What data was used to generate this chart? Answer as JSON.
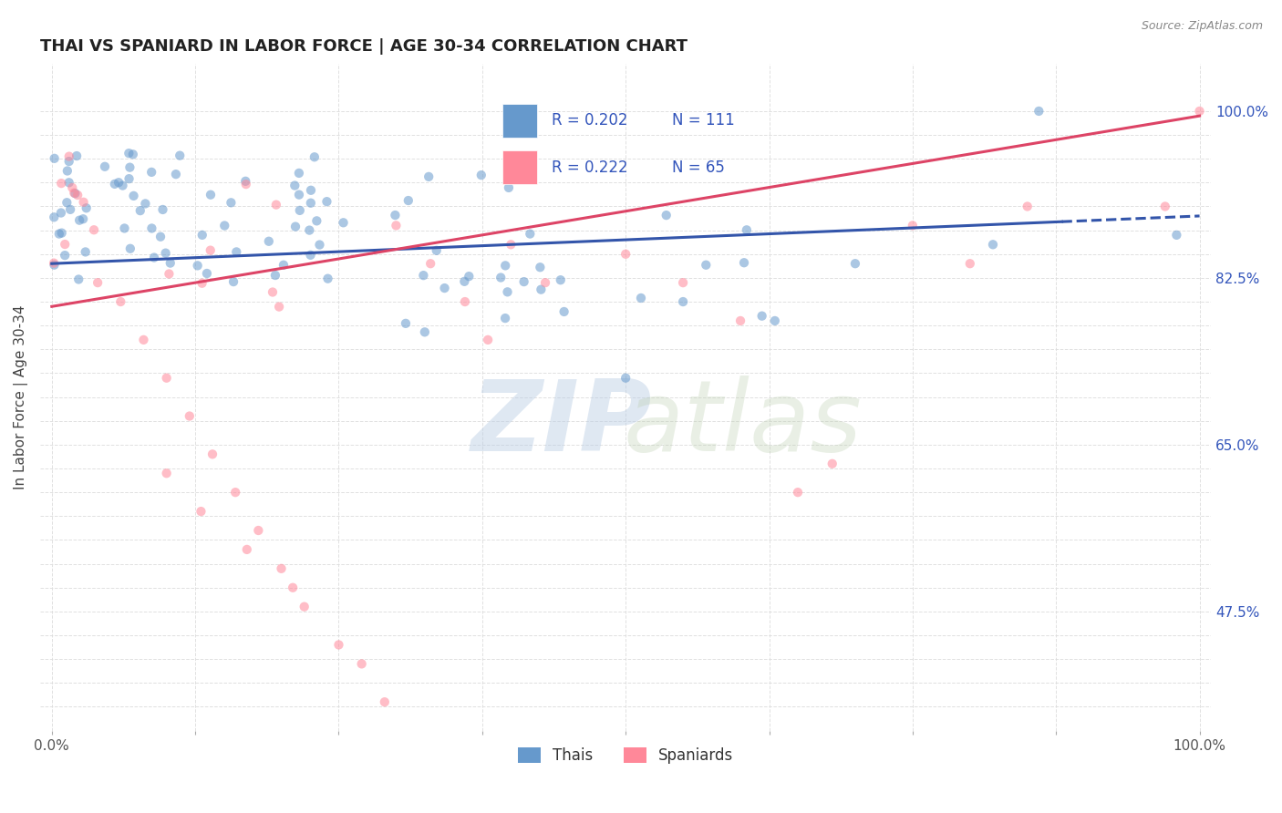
{
  "title": "THAI VS SPANIARD IN LABOR FORCE | AGE 30-34 CORRELATION CHART",
  "source": "Source: ZipAtlas.com",
  "ylabel": "In Labor Force | Age 30-34",
  "xlim": [
    0.0,
    1.0
  ],
  "ylim": [
    0.35,
    1.05
  ],
  "ytick_positions": [
    0.375,
    0.4,
    0.425,
    0.45,
    0.475,
    0.5,
    0.525,
    0.55,
    0.575,
    0.6,
    0.625,
    0.65,
    0.675,
    0.7,
    0.725,
    0.75,
    0.775,
    0.8,
    0.825,
    0.85,
    0.875,
    0.9,
    0.925,
    0.95,
    0.975,
    1.0
  ],
  "ytick_labeled": {
    "0.475": "47.5%",
    "0.65": "65.0%",
    "0.825": "82.5%",
    "1.0": "100.0%"
  },
  "xtick_positions": [
    0.0,
    0.125,
    0.25,
    0.375,
    0.5,
    0.625,
    0.75,
    0.875,
    1.0
  ],
  "xtick_labeled": {
    "0.0": "0.0%",
    "1.0": "100.0%"
  },
  "grid_color": "#dddddd",
  "background_color": "#ffffff",
  "thai_color": "#6699cc",
  "spaniard_color": "#ff8899",
  "thai_line_color": "#3355aa",
  "spaniard_line_color": "#dd4466",
  "marker_size": 55,
  "thai_alpha": 0.55,
  "spaniard_alpha": 0.55,
  "R_thai": 0.202,
  "N_thai": 111,
  "R_spaniard": 0.222,
  "N_spaniard": 65,
  "legend_text_color": "#3355bb",
  "watermark_color_zip": "#b8cce4",
  "watermark_color_atlas": "#c5d8a4",
  "thai_line_intercept": 0.84,
  "thai_line_slope": 0.05,
  "spaniard_line_intercept": 0.795,
  "spaniard_line_slope": 0.2,
  "thai_line_solid_end": 0.88,
  "title_fontsize": 13
}
